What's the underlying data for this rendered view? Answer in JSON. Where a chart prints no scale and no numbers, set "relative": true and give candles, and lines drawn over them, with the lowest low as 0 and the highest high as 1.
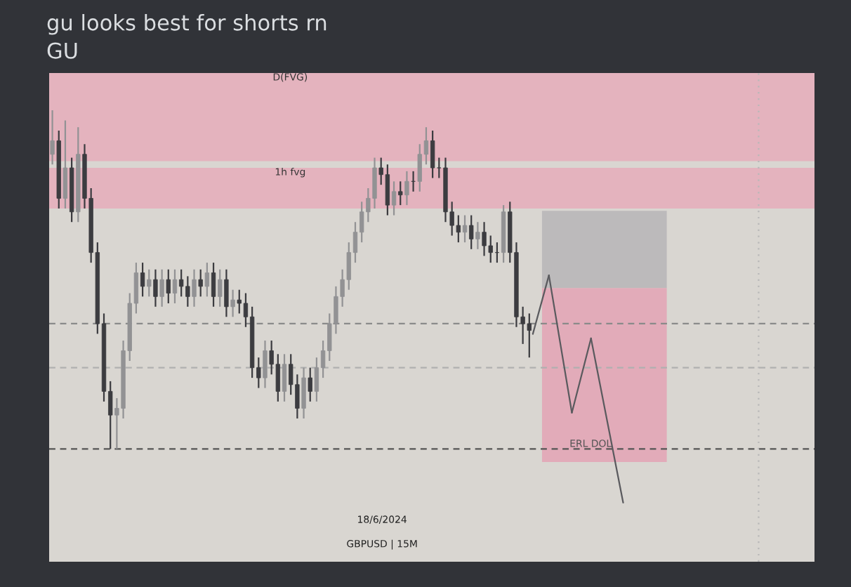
{
  "chart_data": {
    "type": "candlestick",
    "relative": true,
    "title": "gu looks best for shorts rn",
    "subtitle": "GU",
    "categories": [
      null,
      null,
      null,
      null,
      null,
      null,
      null,
      null,
      null,
      null,
      null,
      null,
      null,
      null,
      null,
      null,
      null,
      null,
      null,
      null,
      null,
      null,
      null,
      null,
      null,
      null,
      null,
      null,
      null,
      null,
      null,
      null,
      null,
      null,
      null,
      null,
      null,
      null,
      null,
      null,
      null,
      null,
      null,
      null,
      null,
      null,
      null,
      null,
      null,
      null,
      null,
      null,
      null,
      null,
      null,
      null,
      null,
      null,
      null,
      null,
      null,
      null,
      null,
      null,
      null,
      null,
      null,
      null,
      null,
      null,
      null,
      null,
      null,
      null,
      null
    ],
    "tick_labels": false,
    "series": [
      {
        "colors": [
          "#929294",
          "#3c3c40",
          "#929294",
          "#3c3c40",
          "#929294",
          "#3c3c40",
          "#3c3c40",
          "#3c3c40",
          "#3c3c40",
          "#3c3c40",
          "#929294",
          "#929294",
          "#929294",
          "#929294",
          "#3c3c40",
          "#929294",
          "#3c3c40",
          "#929294",
          "#3c3c40",
          "#929294",
          "#3c3c40",
          "#3c3c40",
          "#929294",
          "#3c3c40",
          "#929294",
          "#3c3c40",
          "#929294",
          "#3c3c40",
          "#929294",
          "#3c3c40",
          "#3c3c40",
          "#3c3c40",
          "#3c3c40",
          "#929294",
          "#3c3c40",
          "#3c3c40",
          "#929294",
          "#3c3c40",
          "#3c3c40",
          "#929294",
          "#3c3c40",
          "#929294",
          "#929294",
          "#929294",
          "#929294",
          "#929294",
          "#929294",
          "#929294",
          "#929294",
          "#929294",
          "#929294",
          "#3c3c40",
          "#3c3c40",
          "#929294",
          "#3c3c40",
          "#929294",
          "#3c3c40",
          "#929294",
          "#929294",
          "#3c3c40",
          "#3c3c40",
          "#3c3c40",
          "#3c3c40",
          "#3c3c40",
          "#929294",
          "#3c3c40",
          "#929294",
          "#3c3c40",
          "#3c3c40",
          "#3c3c40",
          "#929294",
          "#3c3c40",
          "#3c3c40",
          "#3c3c40",
          "#3c3c40"
        ],
        "ohlc": [
          [
            0.87,
            1.0,
            0.84,
            0.91
          ],
          [
            0.91,
            0.94,
            0.71,
            0.74
          ],
          [
            0.74,
            0.97,
            0.71,
            0.83
          ],
          [
            0.83,
            0.86,
            0.67,
            0.7
          ],
          [
            0.7,
            0.95,
            0.67,
            0.87
          ],
          [
            0.87,
            0.9,
            0.71,
            0.74
          ],
          [
            0.74,
            0.77,
            0.55,
            0.58
          ],
          [
            0.58,
            0.61,
            0.34,
            0.37
          ],
          [
            0.37,
            0.4,
            0.14,
            0.17
          ],
          [
            0.17,
            0.2,
            0.0,
            0.1
          ],
          [
            0.1,
            0.15,
            0.0,
            0.12
          ],
          [
            0.12,
            0.32,
            0.09,
            0.29
          ],
          [
            0.29,
            0.46,
            0.26,
            0.43
          ],
          [
            0.43,
            0.55,
            0.4,
            0.52
          ],
          [
            0.52,
            0.55,
            0.45,
            0.48
          ],
          [
            0.48,
            0.53,
            0.45,
            0.5
          ],
          [
            0.5,
            0.53,
            0.42,
            0.45
          ],
          [
            0.45,
            0.53,
            0.42,
            0.5
          ],
          [
            0.5,
            0.53,
            0.43,
            0.46
          ],
          [
            0.46,
            0.53,
            0.43,
            0.5
          ],
          [
            0.5,
            0.53,
            0.45,
            0.48
          ],
          [
            0.48,
            0.51,
            0.42,
            0.45
          ],
          [
            0.45,
            0.53,
            0.42,
            0.5
          ],
          [
            0.5,
            0.53,
            0.45,
            0.48
          ],
          [
            0.48,
            0.55,
            0.45,
            0.52
          ],
          [
            0.52,
            0.55,
            0.42,
            0.45
          ],
          [
            0.45,
            0.53,
            0.42,
            0.5
          ],
          [
            0.5,
            0.53,
            0.39,
            0.42
          ],
          [
            0.42,
            0.47,
            0.39,
            0.44
          ],
          [
            0.44,
            0.47,
            0.4,
            0.43
          ],
          [
            0.43,
            0.46,
            0.36,
            0.39
          ],
          [
            0.39,
            0.42,
            0.21,
            0.24
          ],
          [
            0.24,
            0.27,
            0.18,
            0.21
          ],
          [
            0.21,
            0.32,
            0.18,
            0.29
          ],
          [
            0.29,
            0.32,
            0.22,
            0.25
          ],
          [
            0.25,
            0.28,
            0.14,
            0.17
          ],
          [
            0.17,
            0.28,
            0.14,
            0.25
          ],
          [
            0.25,
            0.28,
            0.16,
            0.19
          ],
          [
            0.19,
            0.22,
            0.09,
            0.12
          ],
          [
            0.12,
            0.24,
            0.09,
            0.21
          ],
          [
            0.21,
            0.24,
            0.14,
            0.17
          ],
          [
            0.17,
            0.27,
            0.14,
            0.24
          ],
          [
            0.24,
            0.32,
            0.21,
            0.29
          ],
          [
            0.29,
            0.4,
            0.26,
            0.37
          ],
          [
            0.37,
            0.48,
            0.34,
            0.45
          ],
          [
            0.45,
            0.53,
            0.42,
            0.5
          ],
          [
            0.5,
            0.61,
            0.47,
            0.58
          ],
          [
            0.58,
            0.67,
            0.55,
            0.64
          ],
          [
            0.64,
            0.73,
            0.61,
            0.7
          ],
          [
            0.7,
            0.77,
            0.67,
            0.74
          ],
          [
            0.74,
            0.86,
            0.71,
            0.83
          ],
          [
            0.83,
            0.86,
            0.78,
            0.81
          ],
          [
            0.81,
            0.84,
            0.69,
            0.72
          ],
          [
            0.72,
            0.79,
            0.69,
            0.76
          ],
          [
            0.76,
            0.79,
            0.72,
            0.75
          ],
          [
            0.75,
            0.82,
            0.72,
            0.79
          ],
          [
            0.79,
            0.82,
            0.76,
            0.79
          ],
          [
            0.79,
            0.9,
            0.76,
            0.87
          ],
          [
            0.87,
            0.95,
            0.84,
            0.91
          ],
          [
            0.91,
            0.94,
            0.8,
            0.83
          ],
          [
            0.83,
            0.86,
            0.8,
            0.83
          ],
          [
            0.83,
            0.86,
            0.67,
            0.7
          ],
          [
            0.7,
            0.73,
            0.63,
            0.66
          ],
          [
            0.66,
            0.69,
            0.61,
            0.64
          ],
          [
            0.64,
            0.69,
            0.61,
            0.66
          ],
          [
            0.66,
            0.69,
            0.59,
            0.62
          ],
          [
            0.62,
            0.67,
            0.59,
            0.64
          ],
          [
            0.64,
            0.67,
            0.57,
            0.6
          ],
          [
            0.6,
            0.63,
            0.55,
            0.58
          ],
          [
            0.58,
            0.61,
            0.55,
            0.58
          ],
          [
            0.58,
            0.72,
            0.55,
            0.7
          ],
          [
            0.7,
            0.73,
            0.55,
            0.58
          ],
          [
            0.58,
            0.61,
            0.36,
            0.39
          ],
          [
            0.39,
            0.42,
            0.31,
            0.37
          ],
          [
            0.37,
            0.4,
            0.27,
            0.35
          ]
        ]
      }
    ],
    "bands": [
      {
        "axis": "y",
        "from": 0.85,
        "to": 1.11,
        "label": "D(FVG)",
        "color": "#e4b3be"
      },
      {
        "axis": "y",
        "from": 0.71,
        "to": 0.83,
        "label": "1h fvg",
        "color": "#e4b3be"
      }
    ],
    "ref_lines": [
      {
        "axis": "y",
        "value": 0.37,
        "line_style": "dashed",
        "color": "#8a8a8a"
      },
      {
        "axis": "y",
        "value": 0.24,
        "line_style": "dashed",
        "color": "#b0b0b0"
      },
      {
        "axis": "y",
        "value": 0.0,
        "label": "ERL DOL",
        "line_style": "dashed",
        "color": "#555555"
      }
    ],
    "annotations": [
      "18/6/2024",
      "GBPUSD | 15M"
    ]
  }
}
